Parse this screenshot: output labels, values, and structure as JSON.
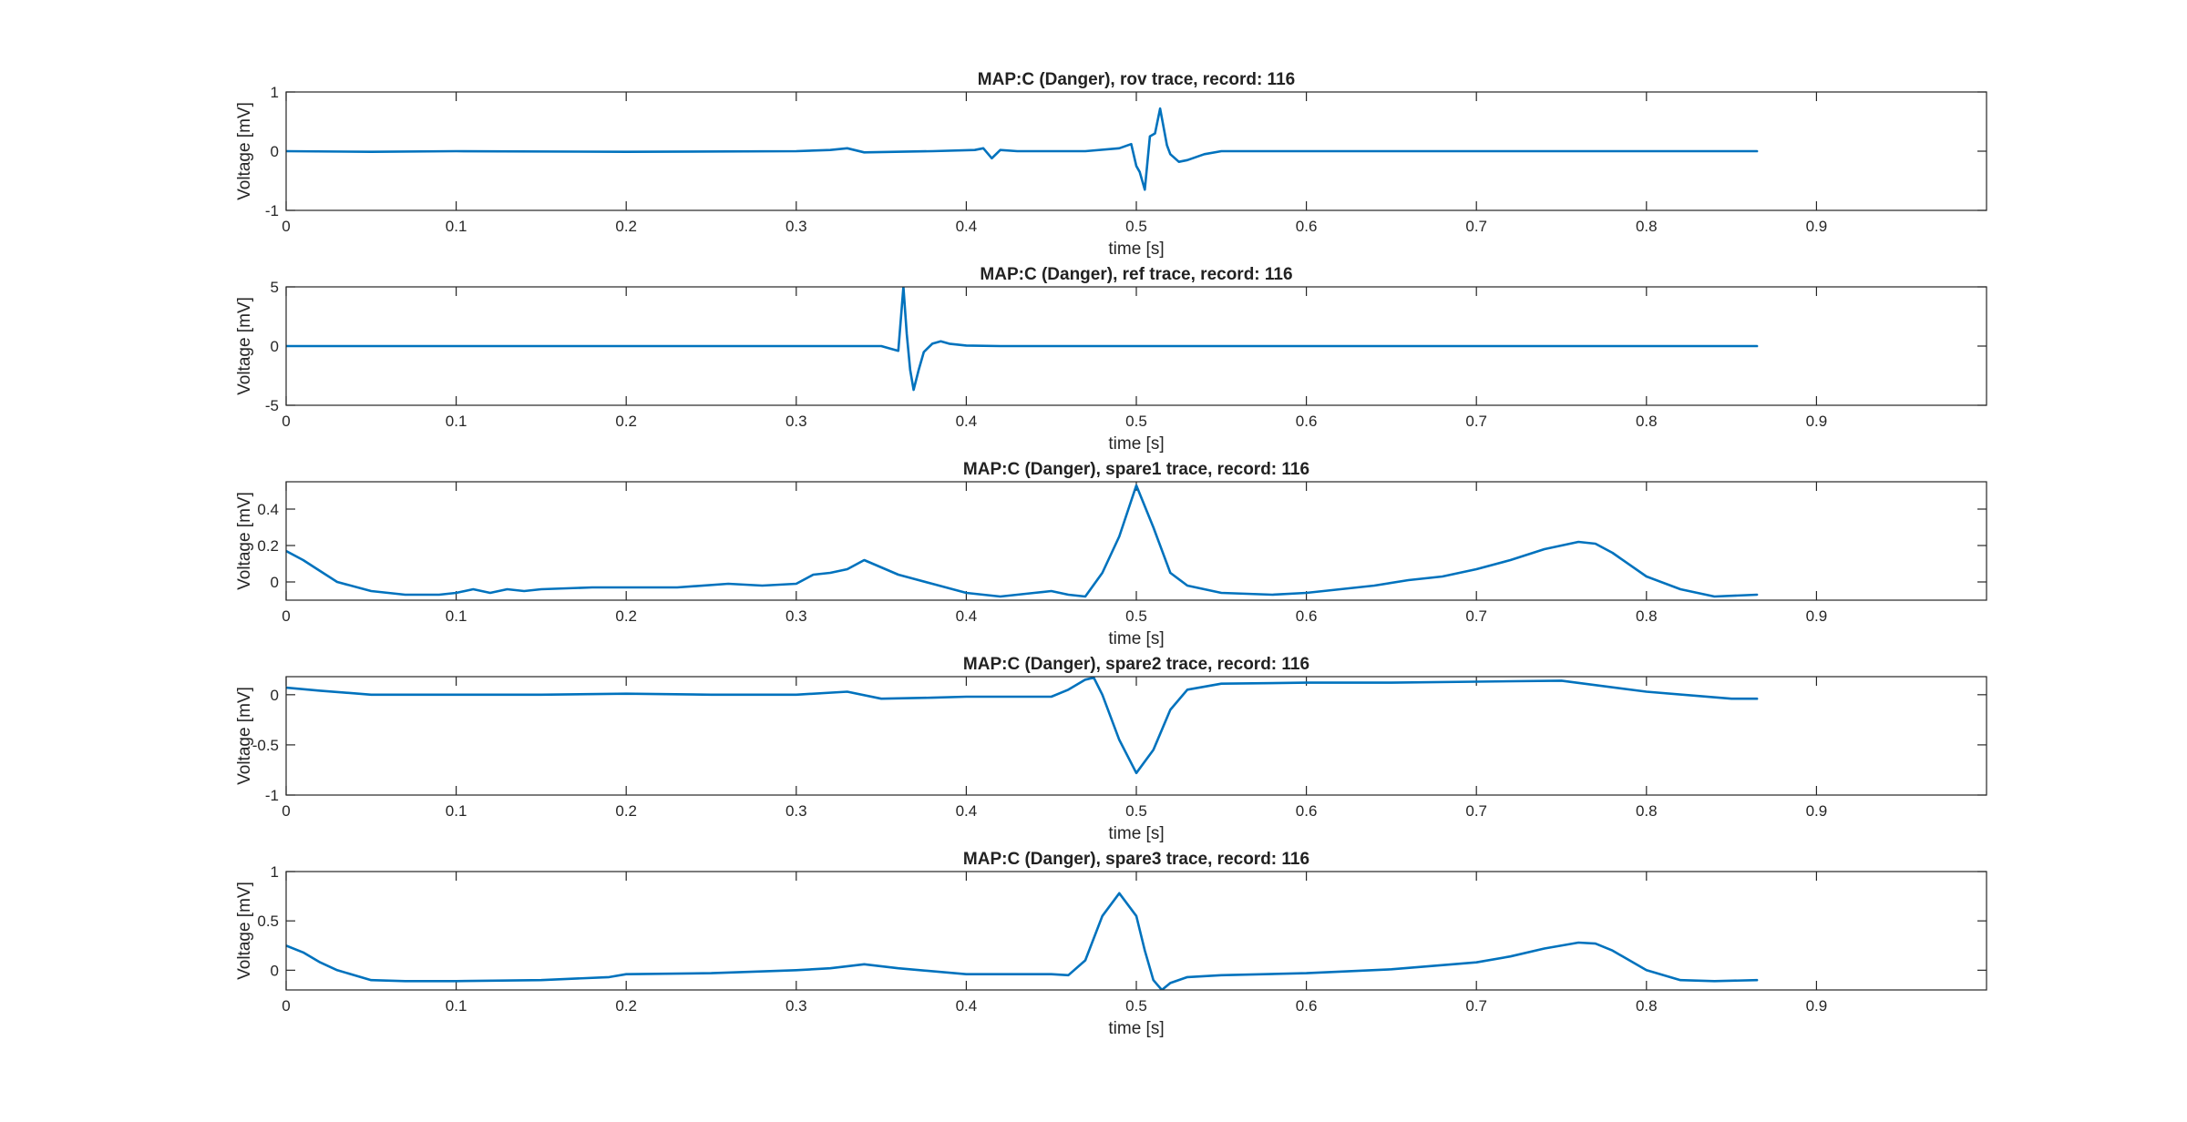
{
  "chart_data": [
    {
      "type": "line",
      "title": "MAP:C (Danger), rov trace, record: 116",
      "xlabel": "time [s]",
      "ylabel": "Voltage [mV]",
      "xlim": [
        0,
        1
      ],
      "ylim": [
        -1,
        1
      ],
      "xticks": [
        "0",
        "0.1",
        "0.2",
        "0.3",
        "0.4",
        "0.5",
        "0.6",
        "0.7",
        "0.8",
        "0.9"
      ],
      "yticks": [
        "-1",
        "0",
        "1"
      ],
      "grid": false,
      "line_color": "#0072BD",
      "series": [
        {
          "x": [
            0,
            0.05,
            0.1,
            0.2,
            0.3,
            0.32,
            0.33,
            0.34,
            0.38,
            0.405,
            0.41,
            0.415,
            0.42,
            0.43,
            0.47,
            0.49,
            0.497,
            0.5,
            0.502,
            0.505,
            0.508,
            0.511,
            0.514,
            0.518,
            0.52,
            0.525,
            0.53,
            0.54,
            0.55,
            0.6,
            0.7,
            0.8,
            0.865
          ],
          "y": [
            0,
            -0.01,
            0,
            -0.01,
            0,
            0.02,
            0.05,
            -0.02,
            0,
            0.02,
            0.05,
            -0.12,
            0.02,
            0,
            0,
            0.05,
            0.12,
            -0.25,
            -0.35,
            -0.65,
            0.25,
            0.3,
            0.72,
            0.1,
            -0.05,
            -0.18,
            -0.15,
            -0.05,
            0,
            0,
            0,
            0,
            0
          ]
        }
      ]
    },
    {
      "type": "line",
      "title": "MAP:C (Danger), ref trace, record: 116",
      "xlabel": "time [s]",
      "ylabel": "Voltage [mV]",
      "xlim": [
        0,
        1
      ],
      "ylim": [
        -5,
        5
      ],
      "xticks": [
        "0",
        "0.1",
        "0.2",
        "0.3",
        "0.4",
        "0.5",
        "0.6",
        "0.7",
        "0.8",
        "0.9"
      ],
      "yticks": [
        "-5",
        "0",
        "5"
      ],
      "grid": false,
      "line_color": "#0072BD",
      "series": [
        {
          "x": [
            0,
            0.1,
            0.2,
            0.3,
            0.35,
            0.355,
            0.36,
            0.363,
            0.365,
            0.367,
            0.369,
            0.372,
            0.375,
            0.38,
            0.385,
            0.39,
            0.4,
            0.42,
            0.5,
            0.6,
            0.7,
            0.8,
            0.865
          ],
          "y": [
            0,
            0,
            0,
            0,
            0,
            -0.2,
            -0.4,
            5.0,
            1.0,
            -2.0,
            -3.7,
            -2.0,
            -0.5,
            0.2,
            0.4,
            0.2,
            0.05,
            0,
            0,
            0,
            0,
            0,
            0
          ]
        }
      ]
    },
    {
      "type": "line",
      "title": "MAP:C (Danger), spare1 trace, record: 116",
      "xlabel": "time [s]",
      "ylabel": "Voltage [mV]",
      "xlim": [
        0,
        1
      ],
      "ylim": [
        -0.1,
        0.55
      ],
      "xticks": [
        "0",
        "0.1",
        "0.2",
        "0.3",
        "0.4",
        "0.5",
        "0.6",
        "0.7",
        "0.8",
        "0.9"
      ],
      "yticks": [
        "0",
        "0.2",
        "0.4"
      ],
      "grid": false,
      "line_color": "#0072BD",
      "series": [
        {
          "x": [
            0,
            0.01,
            0.02,
            0.03,
            0.05,
            0.07,
            0.09,
            0.1,
            0.11,
            0.12,
            0.13,
            0.14,
            0.15,
            0.18,
            0.2,
            0.23,
            0.26,
            0.28,
            0.3,
            0.31,
            0.32,
            0.33,
            0.34,
            0.36,
            0.38,
            0.4,
            0.42,
            0.44,
            0.45,
            0.46,
            0.47,
            0.48,
            0.49,
            0.5,
            0.51,
            0.52,
            0.53,
            0.55,
            0.58,
            0.6,
            0.62,
            0.64,
            0.66,
            0.68,
            0.7,
            0.72,
            0.74,
            0.76,
            0.77,
            0.78,
            0.8,
            0.82,
            0.84,
            0.865
          ],
          "y": [
            0.17,
            0.12,
            0.06,
            0.0,
            -0.05,
            -0.07,
            -0.07,
            -0.06,
            -0.04,
            -0.06,
            -0.04,
            -0.05,
            -0.04,
            -0.03,
            -0.03,
            -0.03,
            -0.01,
            -0.02,
            -0.01,
            0.04,
            0.05,
            0.07,
            0.12,
            0.04,
            -0.01,
            -0.06,
            -0.08,
            -0.06,
            -0.05,
            -0.07,
            -0.08,
            0.05,
            0.25,
            0.53,
            0.3,
            0.05,
            -0.02,
            -0.06,
            -0.07,
            -0.06,
            -0.04,
            -0.02,
            0.01,
            0.03,
            0.07,
            0.12,
            0.18,
            0.22,
            0.21,
            0.16,
            0.03,
            -0.04,
            -0.08,
            -0.07
          ]
        }
      ]
    },
    {
      "type": "line",
      "title": "MAP:C (Danger), spare2 trace, record: 116",
      "xlabel": "time [s]",
      "ylabel": "Voltage [mV]",
      "xlim": [
        0,
        1
      ],
      "ylim": [
        -1,
        0.18
      ],
      "xticks": [
        "0",
        "0.1",
        "0.2",
        "0.3",
        "0.4",
        "0.5",
        "0.6",
        "0.7",
        "0.8",
        "0.9"
      ],
      "yticks": [
        "-1",
        "-0.5",
        "0"
      ],
      "grid": false,
      "line_color": "#0072BD",
      "series": [
        {
          "x": [
            0,
            0.02,
            0.05,
            0.1,
            0.15,
            0.2,
            0.25,
            0.3,
            0.33,
            0.35,
            0.38,
            0.4,
            0.42,
            0.45,
            0.46,
            0.47,
            0.475,
            0.48,
            0.49,
            0.5,
            0.51,
            0.52,
            0.53,
            0.55,
            0.6,
            0.65,
            0.7,
            0.75,
            0.8,
            0.85,
            0.865
          ],
          "y": [
            0.07,
            0.04,
            0,
            0,
            0,
            0.01,
            0,
            0,
            0.03,
            -0.04,
            -0.03,
            -0.02,
            -0.02,
            -0.02,
            0.05,
            0.15,
            0.17,
            0.0,
            -0.45,
            -0.78,
            -0.55,
            -0.15,
            0.05,
            0.11,
            0.12,
            0.12,
            0.13,
            0.14,
            0.03,
            -0.04,
            -0.04
          ]
        }
      ]
    },
    {
      "type": "line",
      "title": "MAP:C (Danger), spare3 trace, record: 116",
      "xlabel": "time [s]",
      "ylabel": "Voltage [mV]",
      "xlim": [
        0,
        1
      ],
      "ylim": [
        -0.2,
        1
      ],
      "xticks": [
        "0",
        "0.1",
        "0.2",
        "0.3",
        "0.4",
        "0.5",
        "0.6",
        "0.7",
        "0.8",
        "0.9"
      ],
      "yticks": [
        "0",
        "0.5",
        "1"
      ],
      "grid": false,
      "line_color": "#0072BD",
      "series": [
        {
          "x": [
            0,
            0.01,
            0.02,
            0.03,
            0.05,
            0.07,
            0.1,
            0.15,
            0.19,
            0.2,
            0.25,
            0.3,
            0.32,
            0.34,
            0.36,
            0.4,
            0.45,
            0.46,
            0.47,
            0.48,
            0.49,
            0.5,
            0.505,
            0.51,
            0.515,
            0.52,
            0.53,
            0.55,
            0.6,
            0.65,
            0.7,
            0.72,
            0.74,
            0.76,
            0.77,
            0.78,
            0.8,
            0.82,
            0.84,
            0.865
          ],
          "y": [
            0.25,
            0.18,
            0.08,
            0.0,
            -0.1,
            -0.11,
            -0.11,
            -0.1,
            -0.07,
            -0.04,
            -0.03,
            0.0,
            0.02,
            0.06,
            0.02,
            -0.04,
            -0.04,
            -0.05,
            0.1,
            0.55,
            0.78,
            0.55,
            0.2,
            -0.1,
            -0.2,
            -0.13,
            -0.07,
            -0.05,
            -0.03,
            0.01,
            0.08,
            0.14,
            0.22,
            0.28,
            0.27,
            0.2,
            0.0,
            -0.1,
            -0.11,
            -0.1
          ]
        }
      ]
    }
  ]
}
